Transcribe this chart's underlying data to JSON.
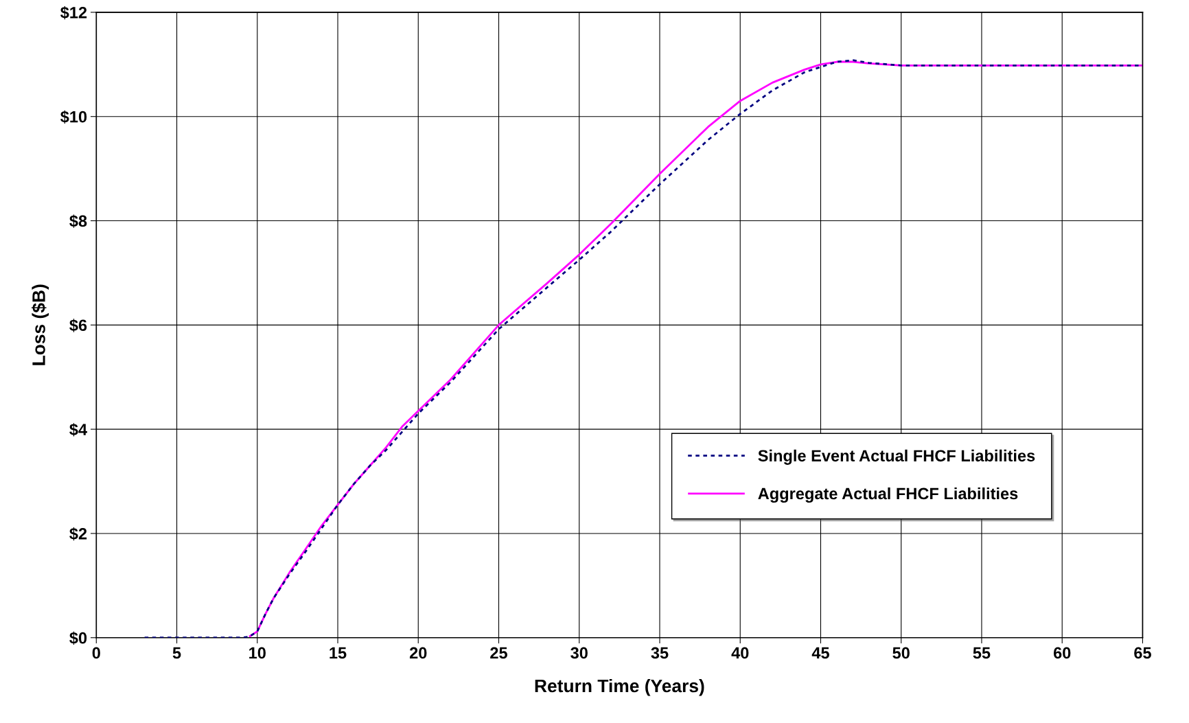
{
  "chart_data": {
    "type": "line",
    "xlabel": "Return Time (Years)",
    "ylabel": "Loss ($B)",
    "xlim": [
      0,
      65
    ],
    "xticks": [
      0,
      5,
      10,
      15,
      20,
      25,
      30,
      35,
      40,
      45,
      50,
      55,
      60,
      65
    ],
    "ylim": [
      0,
      12
    ],
    "yticks": [
      {
        "value": 0,
        "label": "$0"
      },
      {
        "value": 2,
        "label": "$2"
      },
      {
        "value": 4,
        "label": "$4"
      },
      {
        "value": 6,
        "label": "$6"
      },
      {
        "value": 8,
        "label": "$8"
      },
      {
        "value": 10,
        "label": "$10"
      },
      {
        "value": 12,
        "label": "$12"
      }
    ],
    "grid": true,
    "legend": "bottom right",
    "marker": "none",
    "series": [
      {
        "name": "Single Event Actual FHCF Liabilities",
        "color": "#000080",
        "line_style": "dotted",
        "x": [
          3,
          9,
          9.5,
          10,
          10.5,
          11,
          12,
          13,
          14,
          15,
          16,
          17,
          18,
          19,
          20,
          22,
          25,
          28,
          30,
          32,
          35,
          38,
          40,
          42,
          44,
          46,
          47,
          48,
          50,
          65
        ],
        "values": [
          0,
          0,
          0.02,
          0.12,
          0.45,
          0.75,
          1.22,
          1.65,
          2.1,
          2.55,
          2.95,
          3.3,
          3.6,
          3.95,
          4.3,
          4.9,
          5.92,
          6.72,
          7.25,
          7.8,
          8.7,
          9.55,
          10.05,
          10.5,
          10.85,
          11.05,
          11.08,
          11.03,
          10.98,
          10.98
        ]
      },
      {
        "name": "Aggregate Actual FHCF Liabilities",
        "color": "#ff00ff",
        "line_style": "solid",
        "x": [
          9.5,
          10,
          10.5,
          11,
          12,
          13,
          14,
          15,
          16,
          17,
          18,
          19,
          20,
          22,
          25,
          28,
          30,
          32,
          35,
          38,
          40,
          42,
          44,
          45,
          46,
          47,
          48,
          50,
          65
        ],
        "values": [
          0.02,
          0.12,
          0.45,
          0.75,
          1.25,
          1.7,
          2.15,
          2.55,
          2.95,
          3.3,
          3.65,
          4.05,
          4.35,
          4.95,
          6.0,
          6.8,
          7.35,
          7.95,
          8.9,
          9.8,
          10.3,
          10.65,
          10.9,
          11.0,
          11.05,
          11.05,
          11.02,
          10.98,
          10.98
        ]
      }
    ]
  }
}
